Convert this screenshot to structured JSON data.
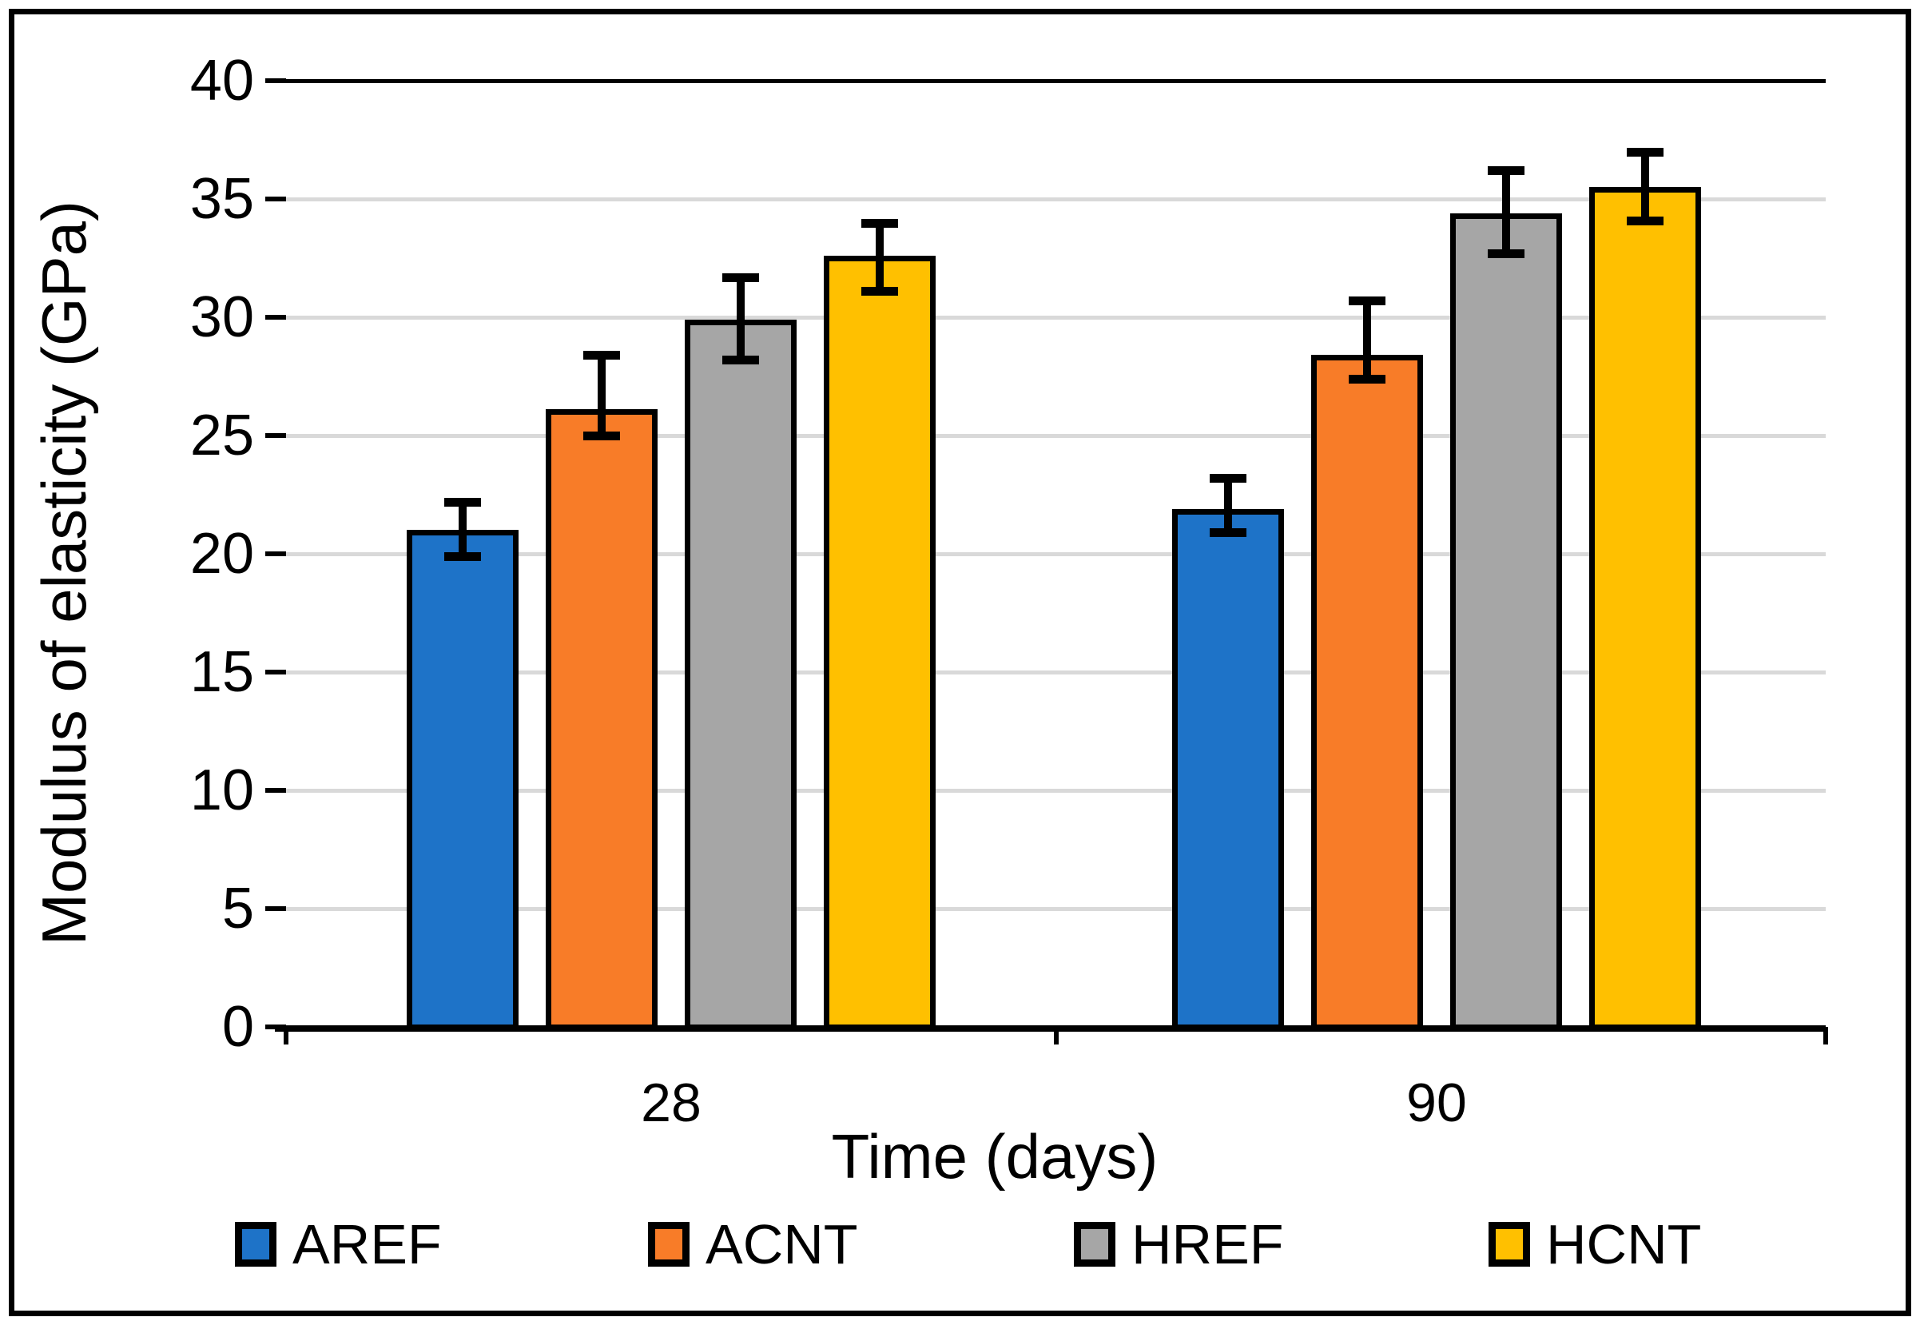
{
  "chart_data": {
    "type": "bar",
    "title": "",
    "categories": [
      "28",
      "90"
    ],
    "series": [
      {
        "name": "AREF",
        "color": "#1E73C8",
        "values": [
          21.0,
          21.9
        ],
        "err_hi": [
          22.2,
          23.2
        ],
        "err_lo": [
          19.9,
          20.9
        ]
      },
      {
        "name": "ACNT",
        "color": "#F87C28",
        "values": [
          26.1,
          28.4
        ],
        "err_hi": [
          28.4,
          30.7
        ],
        "err_lo": [
          25.0,
          27.4
        ]
      },
      {
        "name": "HREF",
        "color": "#A6A6A6",
        "values": [
          29.9,
          34.4
        ],
        "err_hi": [
          31.7,
          36.2
        ],
        "err_lo": [
          28.2,
          32.7
        ]
      },
      {
        "name": "HCNT",
        "color": "#FFC000",
        "values": [
          32.6,
          35.5
        ],
        "err_hi": [
          34.0,
          37.0
        ],
        "err_lo": [
          31.1,
          34.1
        ]
      }
    ],
    "xlabel": "Time (days)",
    "ylabel": "Modulus of elasticity (GPa)",
    "ylim": [
      0,
      40
    ],
    "ytick_step": 5,
    "grid": true,
    "error_bars": true,
    "legend_position": "bottom",
    "colors": {
      "gridline": "#d9d9d9",
      "axis": "#000000",
      "error_bar": "#000000",
      "bar_border": "#000000",
      "frame": "#000000",
      "background": "#ffffff"
    }
  }
}
